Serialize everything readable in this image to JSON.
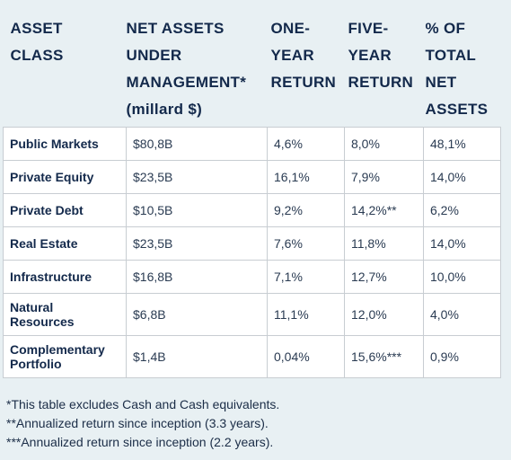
{
  "headers": [
    [
      "ASSET",
      "CLASS"
    ],
    [
      "NET ASSETS",
      "UNDER",
      "MANAGEMENT*",
      "(millard $)"
    ],
    [
      "ONE-",
      "YEAR",
      "RETURN"
    ],
    [
      "FIVE-",
      "YEAR",
      "RETURN"
    ],
    [
      "% OF",
      "TOTAL",
      "NET",
      "ASSETS"
    ]
  ],
  "rows": [
    {
      "name": "Public Markets",
      "nav": "$80,8B",
      "one_year": "4,6%",
      "five_year": "8,0%",
      "pct": "48,1%"
    },
    {
      "name": "Private Equity",
      "nav": "$23,5B",
      "one_year": "16,1%",
      "five_year": "7,9%",
      "pct": "14,0%"
    },
    {
      "name": "Private Debt",
      "nav": "$10,5B",
      "one_year": "9,2%",
      "five_year": "14,2%**",
      "pct": "6,2%"
    },
    {
      "name": "Real Estate",
      "nav": "$23,5B",
      "one_year": "7,6%",
      "five_year": "11,8%",
      "pct": "14,0%"
    },
    {
      "name": "Infrastructure",
      "nav": "$16,8B",
      "one_year": "7,1%",
      "five_year": "12,7%",
      "pct": "10,0%"
    },
    {
      "name": "Natural Resources",
      "nav": "$6,8B",
      "one_year": "11,1%",
      "five_year": "12,0%",
      "pct": "4,0%"
    },
    {
      "name": "Complementary Portfolio",
      "nav": "$1,4B",
      "one_year": "0,04%",
      "five_year": "15,6%***",
      "pct": "0,9%"
    }
  ],
  "footnotes": [
    "*This table excludes Cash and Cash equivalents.",
    "**Annualized return since inception (3.3 years).",
    "***Annualized return since inception (2.2 years)."
  ]
}
